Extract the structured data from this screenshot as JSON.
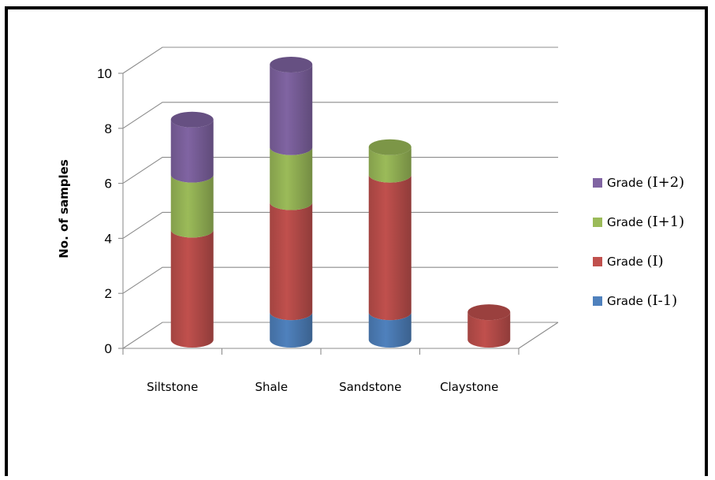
{
  "chart_data": {
    "type": "bar",
    "stacked": true,
    "style": "3d-cylinder",
    "title": "",
    "xlabel": "",
    "ylabel": "No. of samples",
    "ylim": [
      0,
      10
    ],
    "yticks": [
      0,
      2,
      4,
      6,
      8,
      10
    ],
    "grid": true,
    "legend_position": "right",
    "categories": [
      "Siltstone",
      "Shale",
      "Sandstone",
      "Claystone"
    ],
    "series": [
      {
        "name": "Grade (I-1)",
        "word": "Grade",
        "suffix": "(I-1)",
        "color": "#4f81bd",
        "values": [
          0,
          1,
          1,
          0
        ]
      },
      {
        "name": "Grade (I)",
        "word": "Grade",
        "suffix": "(I)",
        "color": "#c0504d",
        "values": [
          4,
          4,
          5,
          1
        ]
      },
      {
        "name": "Grade (I+1)",
        "word": "Grade",
        "suffix": "(I+1)",
        "color": "#9bbb59",
        "values": [
          2,
          2,
          1,
          0
        ]
      },
      {
        "name": "Grade (I+2)",
        "word": "Grade",
        "suffix": "(I+2)",
        "color": "#8064a2",
        "values": [
          2,
          3,
          0,
          0
        ]
      }
    ]
  }
}
